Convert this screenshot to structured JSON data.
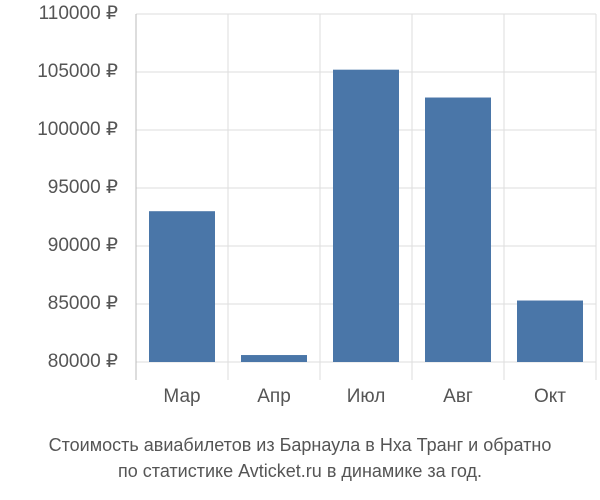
{
  "chart_data": {
    "type": "bar",
    "title": [
      "Стоимость авиабилетов из Барнаула в Нха Транг и обратно",
      "по статистике Avticket.ru в динамике за год."
    ],
    "categories": [
      "Мар",
      "Апр",
      "Июл",
      "Авг",
      "Окт"
    ],
    "values": [
      93000,
      80600,
      105200,
      102800,
      85300
    ],
    "color": "#4a76a8",
    "ylim": [
      80000,
      110000
    ],
    "yticks": [
      {
        "value": 80000,
        "label": "80000 ₽"
      },
      {
        "value": 85000,
        "label": "85000 ₽"
      },
      {
        "value": 90000,
        "label": "90000 ₽"
      },
      {
        "value": 95000,
        "label": "95000 ₽"
      },
      {
        "value": 100000,
        "label": "100000 ₽"
      },
      {
        "value": 105000,
        "label": "105000 ₽"
      },
      {
        "value": 110000,
        "label": "110000 ₽"
      }
    ],
    "grid": true
  }
}
